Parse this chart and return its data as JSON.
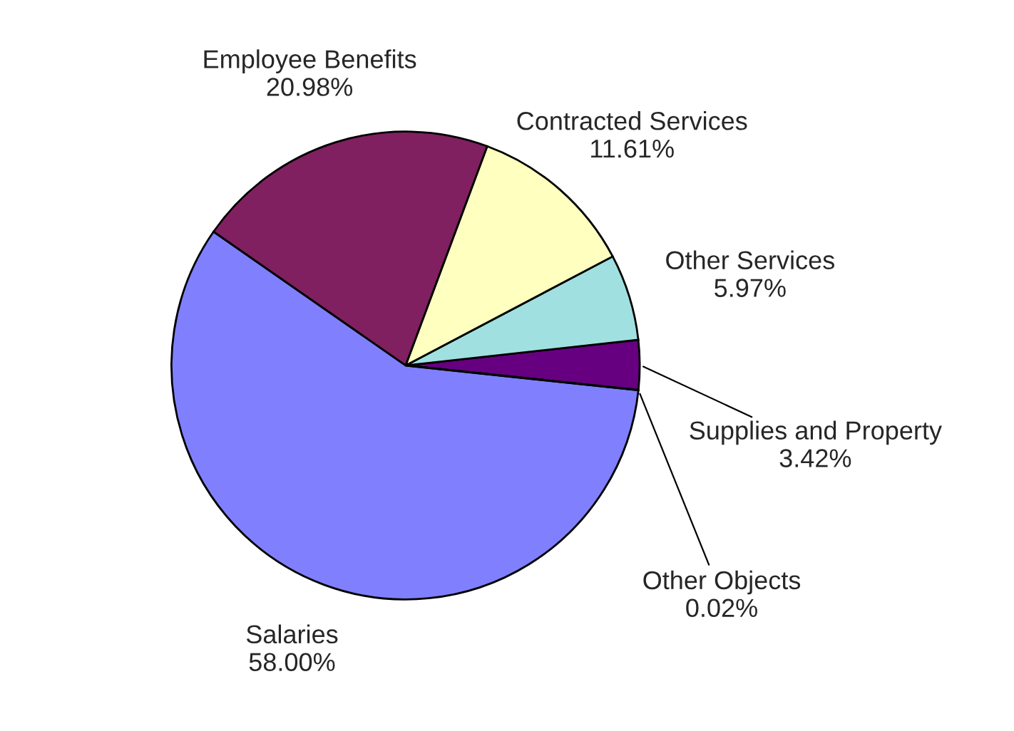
{
  "chart_data": {
    "type": "pie",
    "categories": [
      "Supplies and Property",
      "Other Services",
      "Contracted Services",
      "Employee Benefits",
      "Salaries",
      "Other Objects"
    ],
    "values": [
      3.42,
      5.97,
      11.61,
      20.98,
      58.0,
      0.02
    ],
    "colors": [
      "#660080",
      "#a0e0e0",
      "#ffffc0",
      "#802060",
      "#8080ff",
      "#ff8080"
    ],
    "value_labels": [
      "3.42%",
      "5.97%",
      "11.61%",
      "20.98%",
      "58.00%",
      "0.02%"
    ],
    "legend": false
  }
}
